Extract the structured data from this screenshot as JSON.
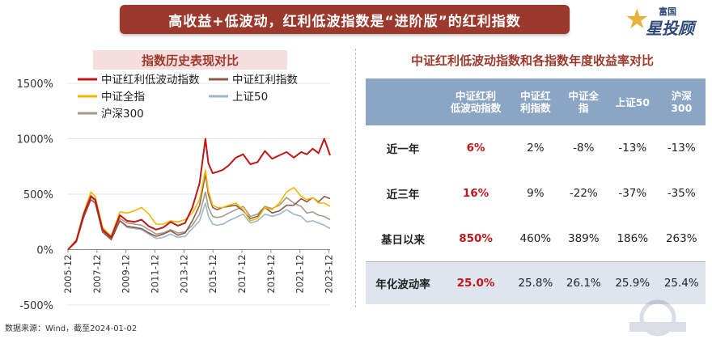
{
  "header": {
    "banner": "高收益+低波动，红利低波指数是“进阶版”的红利指数",
    "logo_top": "富国",
    "logo_main": "星投顾"
  },
  "left_title": "指数历史表现对比",
  "right_title": "中证红利低波动指数和各指数年度收益率对比",
  "source": "数据来源：Wind，截至2024-01-02",
  "colors": {
    "banner": "#9b3a2c",
    "red_series": "#c0171a",
    "table_header": "#8aa6c4"
  },
  "table": {
    "headers": [
      "中证红利\n低波动指数",
      "中证红\n利指数",
      "中证全\n指",
      "上证50",
      "沪深\n300"
    ],
    "rows": [
      {
        "label": "近一年",
        "values": [
          "6%",
          "2%",
          "-8%",
          "-13%",
          "-13%"
        ]
      },
      {
        "label": "近三年",
        "values": [
          "16%",
          "9%",
          "-22%",
          "-37%",
          "-35%"
        ]
      },
      {
        "label": "基日以来",
        "values": [
          "850%",
          "460%",
          "389%",
          "186%",
          "263%"
        ]
      },
      {
        "label": "年化波动率",
        "values": [
          "25.0%",
          "25.8%",
          "26.1%",
          "25.9%",
          "25.4%"
        ]
      }
    ]
  },
  "chart_data": {
    "type": "line",
    "yticks": [
      "1500%",
      "1000%",
      "500%",
      "0%",
      "-500%"
    ],
    "ylim": [
      -500,
      1500
    ],
    "x_ticks": [
      "2005-12",
      "2007-12",
      "2009-12",
      "2011-12",
      "2013-12",
      "2015-12",
      "2017-12",
      "2019-12",
      "2021-12",
      "2023-12"
    ],
    "x_years": [
      2005.92,
      2007.92,
      2009.92,
      2011.92,
      2013.92,
      2015.92,
      2017.92,
      2019.92,
      2021.92,
      2023.92
    ],
    "legend_position": "top-left",
    "x": [
      2005.92,
      2006.5,
      2007.0,
      2007.5,
      2007.8,
      2008.3,
      2008.9,
      2009.5,
      2010.0,
      2010.5,
      2011.0,
      2011.5,
      2012.0,
      2012.5,
      2013.0,
      2013.5,
      2014.0,
      2014.5,
      2015.0,
      2015.4,
      2015.6,
      2015.9,
      2016.2,
      2016.6,
      2017.0,
      2017.5,
      2018.0,
      2018.5,
      2019.0,
      2019.5,
      2020.0,
      2020.5,
      2021.0,
      2021.5,
      2022.0,
      2022.4,
      2022.8,
      2023.2,
      2023.6,
      2024.0
    ],
    "series": [
      {
        "name": "中证红利低波动指数",
        "color": "#c0171a",
        "values": [
          0,
          80,
          320,
          480,
          450,
          180,
          110,
          310,
          260,
          250,
          270,
          210,
          180,
          200,
          250,
          215,
          240,
          380,
          600,
          1000,
          780,
          690,
          700,
          720,
          760,
          830,
          860,
          770,
          790,
          890,
          820,
          850,
          880,
          830,
          880,
          860,
          910,
          870,
          1000,
          850
        ]
      },
      {
        "name": "中证红利指数",
        "color": "#8b5a4a",
        "values": [
          0,
          70,
          290,
          450,
          420,
          160,
          90,
          260,
          210,
          200,
          190,
          150,
          120,
          140,
          170,
          130,
          150,
          260,
          400,
          680,
          500,
          380,
          360,
          380,
          390,
          400,
          350,
          280,
          300,
          380,
          330,
          350,
          400,
          400,
          460,
          430,
          470,
          430,
          480,
          460
        ]
      },
      {
        "name": "中证全指",
        "color": "#f2b800",
        "values": [
          0,
          90,
          330,
          520,
          480,
          200,
          120,
          340,
          330,
          350,
          380,
          320,
          230,
          230,
          260,
          250,
          270,
          330,
          450,
          720,
          530,
          400,
          380,
          380,
          400,
          420,
          360,
          260,
          280,
          380,
          360,
          420,
          520,
          560,
          480,
          450,
          470,
          420,
          420,
          390
        ]
      },
      {
        "name": "上证50",
        "color": "#9db6cc",
        "values": [
          0,
          80,
          300,
          470,
          440,
          160,
          90,
          260,
          200,
          190,
          180,
          140,
          100,
          110,
          140,
          110,
          120,
          190,
          260,
          420,
          300,
          230,
          220,
          230,
          260,
          290,
          320,
          240,
          260,
          320,
          300,
          320,
          360,
          320,
          300,
          250,
          260,
          240,
          220,
          190
        ]
      },
      {
        "name": "沪深300",
        "color": "#a89a86",
        "values": [
          0,
          80,
          310,
          490,
          450,
          170,
          100,
          280,
          240,
          230,
          220,
          180,
          140,
          150,
          180,
          150,
          160,
          220,
          320,
          520,
          380,
          300,
          290,
          300,
          330,
          360,
          390,
          300,
          320,
          390,
          370,
          400,
          470,
          420,
          390,
          330,
          340,
          310,
          300,
          270
        ]
      }
    ]
  }
}
